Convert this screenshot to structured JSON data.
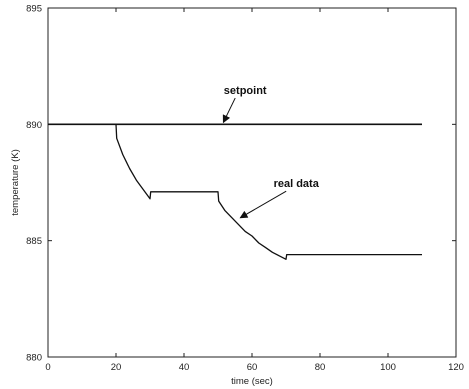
{
  "chart_data": {
    "type": "line",
    "title": "",
    "xlabel": "time (sec)",
    "ylabel": "temperature (K)",
    "xlim": [
      0,
      120
    ],
    "ylim": [
      880,
      895
    ],
    "xticks": [
      0,
      20,
      40,
      60,
      80,
      100,
      120
    ],
    "yticks": [
      880,
      885,
      890,
      895
    ],
    "grid": false,
    "series": [
      {
        "name": "setpoint",
        "x": [
          0,
          110
        ],
        "y": [
          890,
          890
        ]
      },
      {
        "name": "real data",
        "x": [
          0,
          20,
          20.2,
          22,
          24,
          26,
          28,
          30,
          30.2,
          40,
          50,
          50.2,
          52,
          54,
          56,
          58,
          60,
          62,
          64,
          66,
          68,
          70,
          70.2,
          80,
          90,
          100,
          110
        ],
        "y": [
          890,
          890,
          889.4,
          888.7,
          888.1,
          887.6,
          887.2,
          886.8,
          887.1,
          887.1,
          887.1,
          886.7,
          886.3,
          886.0,
          885.7,
          885.4,
          885.2,
          884.9,
          884.7,
          884.5,
          884.35,
          884.2,
          884.4,
          884.4,
          884.4,
          884.4,
          884.4
        ]
      }
    ],
    "annotations": [
      {
        "text": "setpoint",
        "x": 58,
        "y": 891.3,
        "arrow_to": [
          51,
          890
        ]
      },
      {
        "text": "real data",
        "x": 73,
        "y": 887.3,
        "arrow_to": [
          56,
          885.9
        ]
      }
    ],
    "colors": {
      "line": "#111111",
      "axis": "#222222"
    }
  }
}
